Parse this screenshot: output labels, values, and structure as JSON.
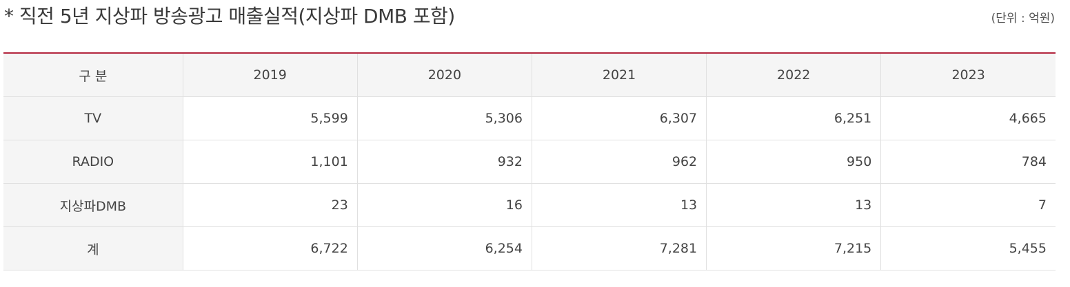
{
  "header": {
    "title": "* 직전 5년 지상파 방송광고 매출실적(지상파 DMB 포함)",
    "unit": "(단위 : 억원)"
  },
  "table": {
    "columns": [
      "구 분",
      "2019",
      "2020",
      "2021",
      "2022",
      "2023"
    ],
    "rows": [
      {
        "label": "TV",
        "values": [
          "5,599",
          "5,306",
          "6,307",
          "6,251",
          "4,665"
        ]
      },
      {
        "label": "RADIO",
        "values": [
          "1,101",
          "932",
          "962",
          "950",
          "784"
        ]
      },
      {
        "label": "지상파DMB",
        "values": [
          "23",
          "16",
          "13",
          "13",
          "7"
        ]
      },
      {
        "label": "계",
        "values": [
          "6,722",
          "6,254",
          "7,281",
          "7,215",
          "5,455"
        ]
      }
    ]
  },
  "colors": {
    "accent_border": "#b3263e",
    "header_bg": "#f5f5f5",
    "grid_line": "#e0e0e0"
  }
}
